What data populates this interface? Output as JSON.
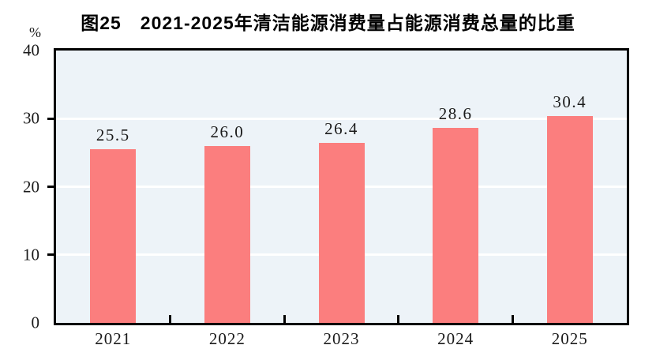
{
  "chart_data": {
    "type": "bar",
    "title": "图25　2021-2025年清洁能源消费量占能源消费总量的比重",
    "categories": [
      "2021",
      "2022",
      "2023",
      "2024",
      "2025"
    ],
    "values": [
      25.5,
      26.0,
      26.4,
      28.6,
      30.4
    ],
    "xlabel": "",
    "ylabel": "%",
    "ylim": [
      0,
      40
    ],
    "yticks": [
      0,
      10,
      20,
      30,
      40
    ],
    "gridlines": [
      10,
      20,
      30
    ],
    "grid": true,
    "legend_position": "none",
    "value_decimals": 1,
    "bar_color": "#FB7E7E",
    "plot_bg": "#EDF3F8",
    "gridline_color": "#FFFFFF",
    "axis_color": "#000000"
  }
}
